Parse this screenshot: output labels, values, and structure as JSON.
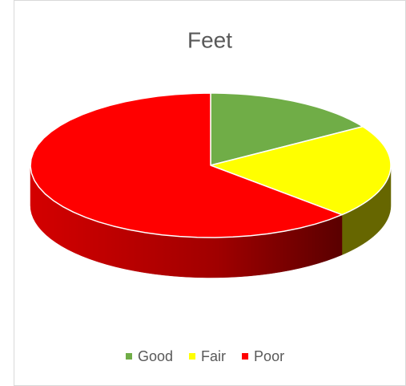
{
  "chart_data": {
    "type": "pie3d",
    "title": "Feet",
    "categories": [
      "Good",
      "Fair",
      "Poor"
    ],
    "values": [
      16,
      21,
      63
    ],
    "colors": [
      "#70ad47",
      "#ffff00",
      "#ff0000"
    ],
    "side_colors": [
      "#3f6a26",
      "#666600",
      "url(#poorSide)"
    ],
    "legend": "bottom"
  }
}
